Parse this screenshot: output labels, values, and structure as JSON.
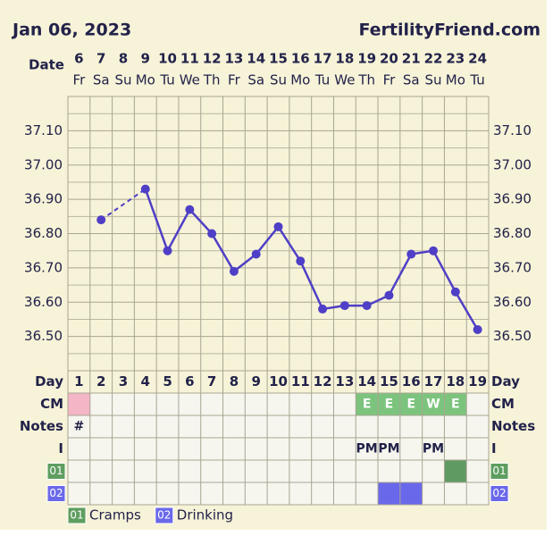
{
  "header": {
    "date": "Jan 06, 2023",
    "site": "FertilityFriend.com"
  },
  "chart_data": {
    "type": "line",
    "date_label": "Date",
    "categories": [
      "6",
      "7",
      "8",
      "9",
      "10",
      "11",
      "12",
      "13",
      "14",
      "15",
      "16",
      "17",
      "18",
      "19",
      "20",
      "21",
      "22",
      "23",
      "24"
    ],
    "weekdays": [
      "Fr",
      "Sa",
      "Su",
      "Mo",
      "Tu",
      "We",
      "Th",
      "Fr",
      "Sa",
      "Su",
      "Mo",
      "Tu",
      "We",
      "Th",
      "Fr",
      "Sa",
      "Su",
      "Mo",
      "Tu"
    ],
    "ylim": [
      36.4,
      37.2
    ],
    "yticks": [
      {
        "value": 36.5,
        "label": "36.50"
      },
      {
        "value": 36.6,
        "label": "36.60"
      },
      {
        "value": 36.7,
        "label": "36.70"
      },
      {
        "value": 36.8,
        "label": "36.80"
      },
      {
        "value": 36.9,
        "label": "36.90"
      },
      {
        "value": 37.0,
        "label": "37.00"
      },
      {
        "value": 37.1,
        "label": "37.10"
      }
    ],
    "minor_yticks": [
      36.45,
      36.55,
      36.65,
      36.75,
      36.85,
      36.95,
      37.05,
      37.15
    ],
    "grid": true,
    "series": [
      {
        "color": "#4f3fc6",
        "values": [
          null,
          36.84,
          null,
          36.93,
          36.75,
          36.87,
          36.8,
          36.69,
          36.74,
          36.82,
          36.72,
          36.58,
          36.59,
          36.59,
          36.62,
          36.74,
          36.75,
          36.63,
          36.52
        ]
      }
    ]
  },
  "table": {
    "day_label": "Day",
    "days": [
      1,
      2,
      3,
      4,
      5,
      6,
      7,
      8,
      9,
      10,
      11,
      12,
      13,
      14,
      15,
      16,
      17,
      18,
      19
    ],
    "rows": [
      {
        "label": "CM",
        "cells": [
          null,
          null,
          null,
          null,
          null,
          null,
          null,
          null,
          null,
          null,
          null,
          null,
          null,
          "E",
          "E",
          "E",
          "W",
          "E",
          null
        ],
        "fills": [
          "#f4b6c6",
          null,
          null,
          null,
          null,
          null,
          null,
          null,
          null,
          null,
          null,
          null,
          null,
          "#7cc47e",
          "#7cc47e",
          "#7cc47e",
          "#7cc47e",
          "#7cc47e",
          null
        ]
      },
      {
        "label": "Notes",
        "cells": [
          "#",
          null,
          null,
          null,
          null,
          null,
          null,
          null,
          null,
          null,
          null,
          null,
          null,
          null,
          null,
          null,
          null,
          null,
          null
        ]
      },
      {
        "label": "I",
        "cells": [
          null,
          null,
          null,
          null,
          null,
          null,
          null,
          null,
          null,
          null,
          null,
          null,
          null,
          "PM",
          "PM",
          null,
          "PM",
          null,
          null
        ]
      },
      {
        "label": "01",
        "name": "Cramps",
        "badge": "#5e9e60",
        "fills": [
          null,
          null,
          null,
          null,
          null,
          null,
          null,
          null,
          null,
          null,
          null,
          null,
          null,
          null,
          null,
          null,
          null,
          "#5f9a62",
          null
        ]
      },
      {
        "label": "02",
        "name": "Drinking",
        "badge": "#6a68ea",
        "fills": [
          null,
          null,
          null,
          null,
          null,
          null,
          null,
          null,
          null,
          null,
          null,
          null,
          null,
          null,
          "#6a68ea",
          "#6a68ea",
          null,
          null,
          null
        ]
      }
    ]
  }
}
